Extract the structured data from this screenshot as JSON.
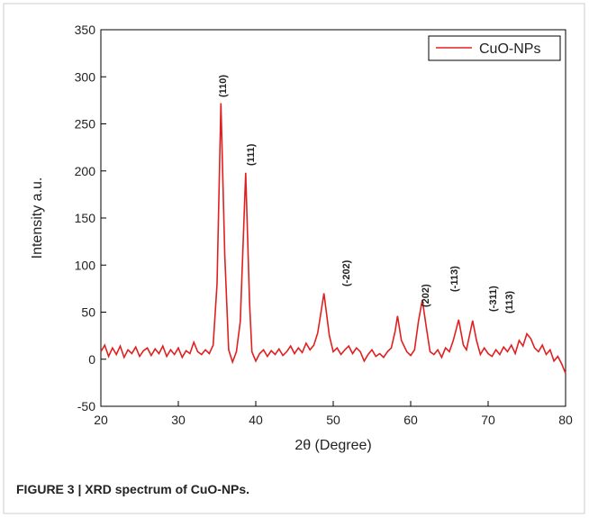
{
  "chart_data": {
    "type": "line",
    "x_label": "2θ (Degree)",
    "y_label": "Intensity a.u.",
    "caption": "FIGURE 3 | XRD spectrum of CuO-NPs.",
    "xlim": [
      20,
      80
    ],
    "xticks": [
      20,
      30,
      40,
      50,
      60,
      70,
      80
    ],
    "ylim": [
      -50,
      350
    ],
    "yticks": [
      -50,
      0,
      50,
      100,
      150,
      200,
      250,
      300,
      350
    ],
    "legend": "upper right",
    "annotations": [
      "(110)",
      "(111)",
      "(-202)",
      "(202)",
      "(-113)",
      "(-311)",
      "(113)"
    ],
    "x": [
      20,
      20.5,
      21,
      21.5,
      22,
      22.5,
      23,
      23.5,
      24,
      24.5,
      25,
      25.5,
      26,
      26.5,
      27,
      27.5,
      28,
      28.5,
      29,
      29.5,
      30,
      30.5,
      31,
      31.5,
      32,
      32.5,
      33,
      33.5,
      34,
      34.5,
      35,
      35.5,
      36,
      36.5,
      37,
      37.5,
      38,
      38.7,
      39.2,
      39.5,
      40,
      40.5,
      41,
      41.5,
      42,
      42.5,
      43,
      43.5,
      44,
      44.5,
      45,
      45.5,
      46,
      46.5,
      47,
      47.5,
      48,
      48.8,
      49.5,
      50,
      50.5,
      51,
      51.5,
      52,
      52.5,
      53,
      53.5,
      54,
      54.5,
      55,
      55.5,
      56,
      56.5,
      57,
      57.5,
      58,
      58.3,
      58.8,
      59.5,
      60,
      60.5,
      61,
      61.5,
      62,
      62.5,
      63,
      63.5,
      64,
      64.5,
      65,
      65.5,
      66.2,
      66.8,
      67.2,
      68,
      68.5,
      69,
      69.5,
      70,
      70.5,
      71,
      71.5,
      72,
      72.5,
      73,
      73.5,
      74,
      74.5,
      75,
      75.5,
      76,
      76.5,
      77,
      77.5,
      78,
      78.5,
      79,
      79.5,
      80
    ],
    "series": [
      {
        "name": "CuO-NPs",
        "color": "#e02020",
        "values": [
          8,
          15,
          3,
          12,
          5,
          14,
          2,
          10,
          6,
          13,
          3,
          9,
          12,
          4,
          11,
          6,
          14,
          3,
          10,
          5,
          12,
          2,
          9,
          6,
          18,
          8,
          5,
          10,
          6,
          15,
          80,
          272,
          110,
          10,
          -3,
          8,
          40,
          198,
          60,
          8,
          -2,
          6,
          10,
          3,
          9,
          5,
          11,
          4,
          8,
          14,
          6,
          12,
          7,
          17,
          10,
          15,
          28,
          70,
          25,
          8,
          12,
          5,
          10,
          14,
          6,
          12,
          8,
          -2,
          5,
          10,
          3,
          6,
          2,
          8,
          12,
          30,
          46,
          20,
          8,
          4,
          10,
          40,
          63,
          35,
          8,
          5,
          10,
          2,
          12,
          8,
          20,
          42,
          15,
          10,
          41,
          20,
          5,
          12,
          6,
          3,
          10,
          5,
          13,
          8,
          15,
          6,
          20,
          14,
          27,
          22,
          12,
          8,
          15,
          5,
          10,
          -2,
          3,
          -5,
          -15
        ]
      }
    ]
  }
}
